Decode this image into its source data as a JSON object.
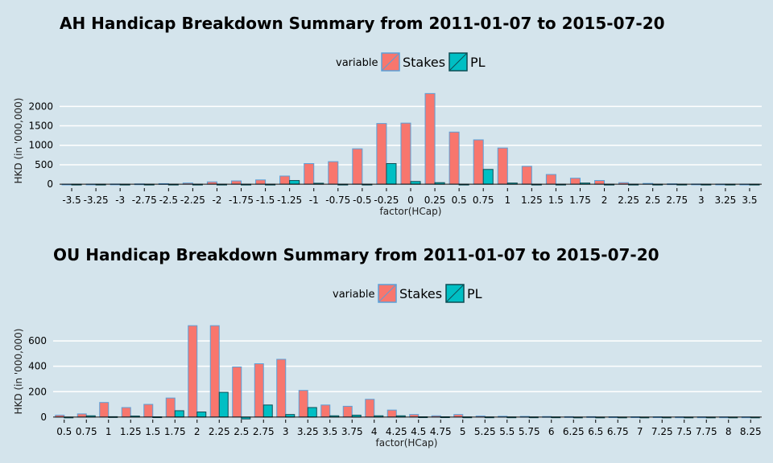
{
  "colors": {
    "stakes": "#f8766d",
    "pl": "#00bfc4",
    "background": "#d4e4ec",
    "stakes_outline": "#5aa0d8",
    "pl_outline": "#0d4d54"
  },
  "chart_data": [
    {
      "type": "bar",
      "title": "AH Handicap Breakdown Summary from 2011-01-07 to 2015-07-20",
      "xlabel": "factor(HCap)",
      "ylabel": "HKD (in '000,000)",
      "legend_title": "variable",
      "legend_placement": "top-center",
      "grid": true,
      "ylim": [
        -100,
        2420
      ],
      "yticks": [
        0,
        500,
        1000,
        1500,
        2000
      ],
      "categories": [
        "-3.5",
        "-3.25",
        "-3",
        "-2.75",
        "-2.5",
        "-2.25",
        "-2",
        "-1.75",
        "-1.5",
        "-1.25",
        "-1",
        "-0.75",
        "-0.5",
        "-0.25",
        "0",
        "0.25",
        "0.5",
        "0.75",
        "1",
        "1.25",
        "1.5",
        "1.75",
        "2",
        "2.25",
        "2.5",
        "2.75",
        "3",
        "3.25",
        "3.5"
      ],
      "series": [
        {
          "name": "Stakes",
          "values": [
            2,
            3,
            5,
            8,
            15,
            30,
            60,
            85,
            110,
            210,
            530,
            580,
            910,
            1560,
            1570,
            2330,
            1340,
            1140,
            930,
            460,
            250,
            155,
            95,
            40,
            20,
            10,
            5,
            3,
            2
          ]
        },
        {
          "name": "PL",
          "values": [
            -2,
            -1,
            -3,
            -2,
            -4,
            -8,
            -10,
            -15,
            -5,
            95,
            25,
            -20,
            -10,
            530,
            70,
            40,
            -10,
            380,
            30,
            -10,
            -12,
            30,
            -20,
            -4,
            -3,
            -2,
            -1,
            -1,
            0
          ]
        }
      ]
    },
    {
      "type": "bar",
      "title": "OU Handicap Breakdown Summary from 2011-01-07 to 2015-07-20",
      "xlabel": "factor(HCap)",
      "ylabel": "HKD (in '000,000)",
      "legend_title": "variable",
      "legend_placement": "top-center",
      "grid": true,
      "ylim": [
        -20,
        740
      ],
      "yticks": [
        0,
        200,
        400,
        600
      ],
      "categories": [
        "0.5",
        "0.75",
        "1",
        "1.25",
        "1.5",
        "1.75",
        "2",
        "2.25",
        "2.5",
        "2.75",
        "3",
        "3.25",
        "3.5",
        "3.75",
        "4",
        "4.25",
        "4.5",
        "4.75",
        "5",
        "5.25",
        "5.5",
        "5.75",
        "6",
        "6.25",
        "6.5",
        "6.75",
        "7",
        "7.25",
        "7.5",
        "7.75",
        "8",
        "8.25"
      ],
      "series": [
        {
          "name": "Stakes",
          "values": [
            15,
            25,
            115,
            75,
            100,
            150,
            720,
            720,
            395,
            420,
            455,
            210,
            95,
            85,
            140,
            55,
            20,
            10,
            20,
            8,
            6,
            5,
            4,
            3,
            3,
            2,
            2,
            2,
            1,
            1,
            1,
            1
          ]
        },
        {
          "name": "PL",
          "values": [
            -2,
            10,
            3,
            8,
            2,
            50,
            40,
            195,
            -15,
            95,
            20,
            75,
            10,
            15,
            10,
            10,
            2,
            2,
            1,
            1,
            1,
            1,
            1,
            0,
            0,
            0,
            0,
            0,
            0,
            0,
            0,
            0
          ]
        }
      ]
    }
  ]
}
